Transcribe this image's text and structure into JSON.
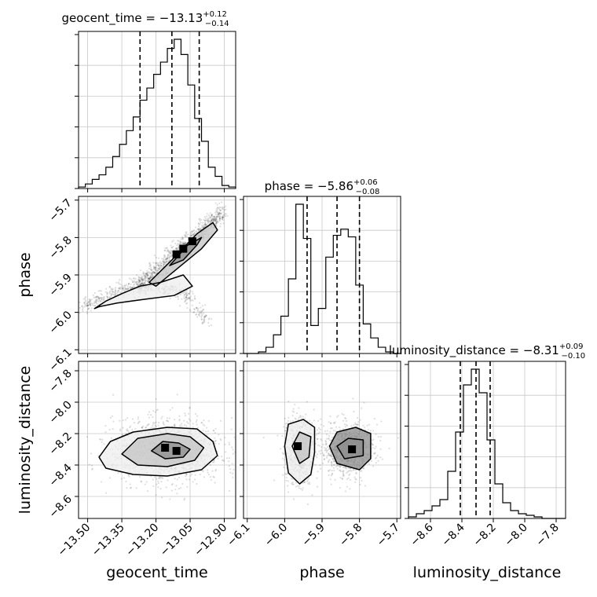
{
  "chart_data": {
    "type": "corner",
    "parameters": [
      {
        "name": "geocent_time",
        "axis_label": "geocent_time",
        "title_prefix": "geocent_time = ",
        "median": "−13.13",
        "plus": "+0.12",
        "minus": "−0.14",
        "range": [
          -13.54,
          -12.85
        ],
        "ticks": [
          -13.5,
          -13.35,
          -13.2,
          -13.05,
          -12.9
        ],
        "tick_labels": [
          "−13.50",
          "−13.35",
          "−13.20",
          "−13.05",
          "−12.90"
        ],
        "quantiles": [
          -13.27,
          -13.13,
          -13.01
        ],
        "bin_edges": [
          -13.54,
          -13.51,
          -13.48,
          -13.45,
          -13.42,
          -13.39,
          -13.36,
          -13.33,
          -13.3,
          -13.27,
          -13.24,
          -13.21,
          -13.18,
          -13.15,
          -13.12,
          -13.09,
          -13.06,
          -13.03,
          -13.0,
          -12.97,
          -12.94,
          -12.91,
          -12.88,
          -12.85
        ],
        "hist": [
          1,
          3,
          6,
          9,
          14,
          21,
          29,
          38,
          47,
          58,
          66,
          75,
          83,
          92,
          98,
          88,
          68,
          46,
          31,
          14,
          8,
          2,
          1
        ]
      },
      {
        "name": "phase",
        "axis_label": "phase",
        "title_prefix": "phase = ",
        "median": "−5.86",
        "plus": "+0.06",
        "minus": "−0.08",
        "range": [
          -6.11,
          -5.69
        ],
        "ticks": [
          -6.1,
          -6.0,
          -5.9,
          -5.8,
          -5.7
        ],
        "tick_labels": [
          "−6.1",
          "−6.0",
          "−5.9",
          "−5.8",
          "−5.7"
        ],
        "quantiles": [
          -5.94,
          -5.86,
          -5.8
        ],
        "bin_edges": [
          -6.11,
          -6.09,
          -6.07,
          -6.05,
          -6.03,
          -6.01,
          -5.99,
          -5.97,
          -5.95,
          -5.93,
          -5.91,
          -5.89,
          -5.87,
          -5.85,
          -5.83,
          -5.81,
          -5.79,
          -5.77,
          -5.75,
          -5.73,
          -5.71,
          -5.69
        ],
        "hist": [
          0,
          0,
          1,
          4,
          12,
          24,
          48,
          96,
          74,
          18,
          29,
          62,
          76,
          80,
          75,
          44,
          19,
          10,
          4,
          1,
          0
        ]
      },
      {
        "name": "luminosity_distance",
        "axis_label": "luminosity_distance",
        "title_prefix": "luminosity_distance = ",
        "median": "−8.31",
        "plus": "+0.09",
        "minus": "−0.10",
        "range": [
          -8.74,
          -7.74
        ],
        "ticks": [
          -8.6,
          -8.4,
          -8.2,
          -8.0,
          -7.8
        ],
        "tick_labels": [
          "−8.6",
          "−8.4",
          "−8.2",
          "−8.0",
          "−7.8"
        ],
        "quantiles": [
          -8.41,
          -8.31,
          -8.22
        ],
        "bin_edges": [
          -8.74,
          -8.69,
          -8.64,
          -8.59,
          -8.54,
          -8.49,
          -8.44,
          -8.39,
          -8.34,
          -8.29,
          -8.24,
          -8.19,
          -8.14,
          -8.09,
          -8.04,
          -7.99,
          -7.94,
          -7.89,
          -7.84,
          -7.79,
          -7.74
        ],
        "hist": [
          1,
          3,
          5,
          8,
          12,
          30,
          55,
          85,
          95,
          80,
          50,
          22,
          10,
          5,
          3,
          2,
          1,
          0,
          0,
          0
        ]
      }
    ],
    "contours": {
      "phase_vs_geocent_time": [
        [
          [
            -13.47,
            -5.99
          ],
          [
            -13.42,
            -5.97
          ],
          [
            -13.35,
            -5.95
          ],
          [
            -13.27,
            -5.93
          ],
          [
            -13.18,
            -5.92
          ],
          [
            -13.08,
            -5.9
          ],
          [
            -13.04,
            -5.93
          ],
          [
            -13.12,
            -5.955
          ],
          [
            -13.25,
            -5.965
          ],
          [
            -13.37,
            -5.975
          ],
          [
            -13.45,
            -5.985
          ],
          [
            -13.47,
            -5.99
          ]
        ],
        [
          [
            -13.23,
            -5.92
          ],
          [
            -13.13,
            -5.86
          ],
          [
            -13.02,
            -5.79
          ],
          [
            -12.95,
            -5.76
          ],
          [
            -12.93,
            -5.78
          ],
          [
            -13.0,
            -5.83
          ],
          [
            -13.1,
            -5.88
          ],
          [
            -13.2,
            -5.93
          ],
          [
            -13.23,
            -5.92
          ]
        ],
        [
          [
            -13.14,
            -5.875
          ],
          [
            -13.06,
            -5.82
          ],
          [
            -13.0,
            -5.8
          ],
          [
            -13.02,
            -5.82
          ],
          [
            -13.08,
            -5.86
          ],
          [
            -13.14,
            -5.875
          ]
        ]
      ],
      "luminosity_distance_vs_geocent_time": [
        [
          [
            -13.45,
            -8.35
          ],
          [
            -13.4,
            -8.25
          ],
          [
            -13.3,
            -8.19
          ],
          [
            -13.15,
            -8.16
          ],
          [
            -13.02,
            -8.17
          ],
          [
            -12.95,
            -8.25
          ],
          [
            -12.93,
            -8.34
          ],
          [
            -13.0,
            -8.43
          ],
          [
            -13.15,
            -8.47
          ],
          [
            -13.3,
            -8.46
          ],
          [
            -13.42,
            -8.42
          ],
          [
            -13.45,
            -8.35
          ]
        ],
        [
          [
            -13.35,
            -8.33
          ],
          [
            -13.28,
            -8.23
          ],
          [
            -13.15,
            -8.2
          ],
          [
            -13.05,
            -8.22
          ],
          [
            -12.99,
            -8.29
          ],
          [
            -13.03,
            -8.37
          ],
          [
            -13.15,
            -8.41
          ],
          [
            -13.28,
            -8.4
          ],
          [
            -13.35,
            -8.33
          ]
        ],
        [
          [
            -13.22,
            -8.31
          ],
          [
            -13.17,
            -8.25
          ],
          [
            -13.1,
            -8.26
          ],
          [
            -13.05,
            -8.3
          ],
          [
            -13.08,
            -8.35
          ],
          [
            -13.16,
            -8.36
          ],
          [
            -13.22,
            -8.31
          ]
        ]
      ],
      "luminosity_distance_vs_phase": [
        [
          [
            -6.0,
            -8.28
          ],
          [
            -5.99,
            -8.14
          ],
          [
            -5.95,
            -8.11
          ],
          [
            -5.92,
            -8.16
          ],
          [
            -5.92,
            -8.32
          ],
          [
            -5.93,
            -8.46
          ],
          [
            -5.96,
            -8.52
          ],
          [
            -5.99,
            -8.45
          ],
          [
            -6.0,
            -8.28
          ]
        ],
        [
          [
            -5.98,
            -8.28
          ],
          [
            -5.96,
            -8.19
          ],
          [
            -5.93,
            -8.22
          ],
          [
            -5.935,
            -8.35
          ],
          [
            -5.96,
            -8.39
          ],
          [
            -5.98,
            -8.28
          ]
        ],
        [
          [
            -5.88,
            -8.28
          ],
          [
            -5.86,
            -8.19
          ],
          [
            -5.81,
            -8.16
          ],
          [
            -5.77,
            -8.2
          ],
          [
            -5.77,
            -8.36
          ],
          [
            -5.8,
            -8.43
          ],
          [
            -5.86,
            -8.39
          ],
          [
            -5.88,
            -8.28
          ]
        ],
        [
          [
            -5.86,
            -8.28
          ],
          [
            -5.83,
            -8.23
          ],
          [
            -5.79,
            -8.24
          ],
          [
            -5.79,
            -8.34
          ],
          [
            -5.84,
            -8.36
          ],
          [
            -5.86,
            -8.28
          ]
        ]
      ]
    },
    "density_peaks": {
      "phase_vs_geocent_time": [
        [
          -13.08,
          -5.83
        ],
        [
          -13.11,
          -5.845
        ],
        [
          -13.04,
          -5.81
        ]
      ],
      "luminosity_distance_vs_geocent_time": [
        [
          -13.11,
          -8.31
        ],
        [
          -13.16,
          -8.29
        ]
      ],
      "luminosity_distance_vs_phase": [
        [
          -5.965,
          -8.28
        ],
        [
          -5.82,
          -8.3
        ]
      ]
    },
    "grid": true
  }
}
